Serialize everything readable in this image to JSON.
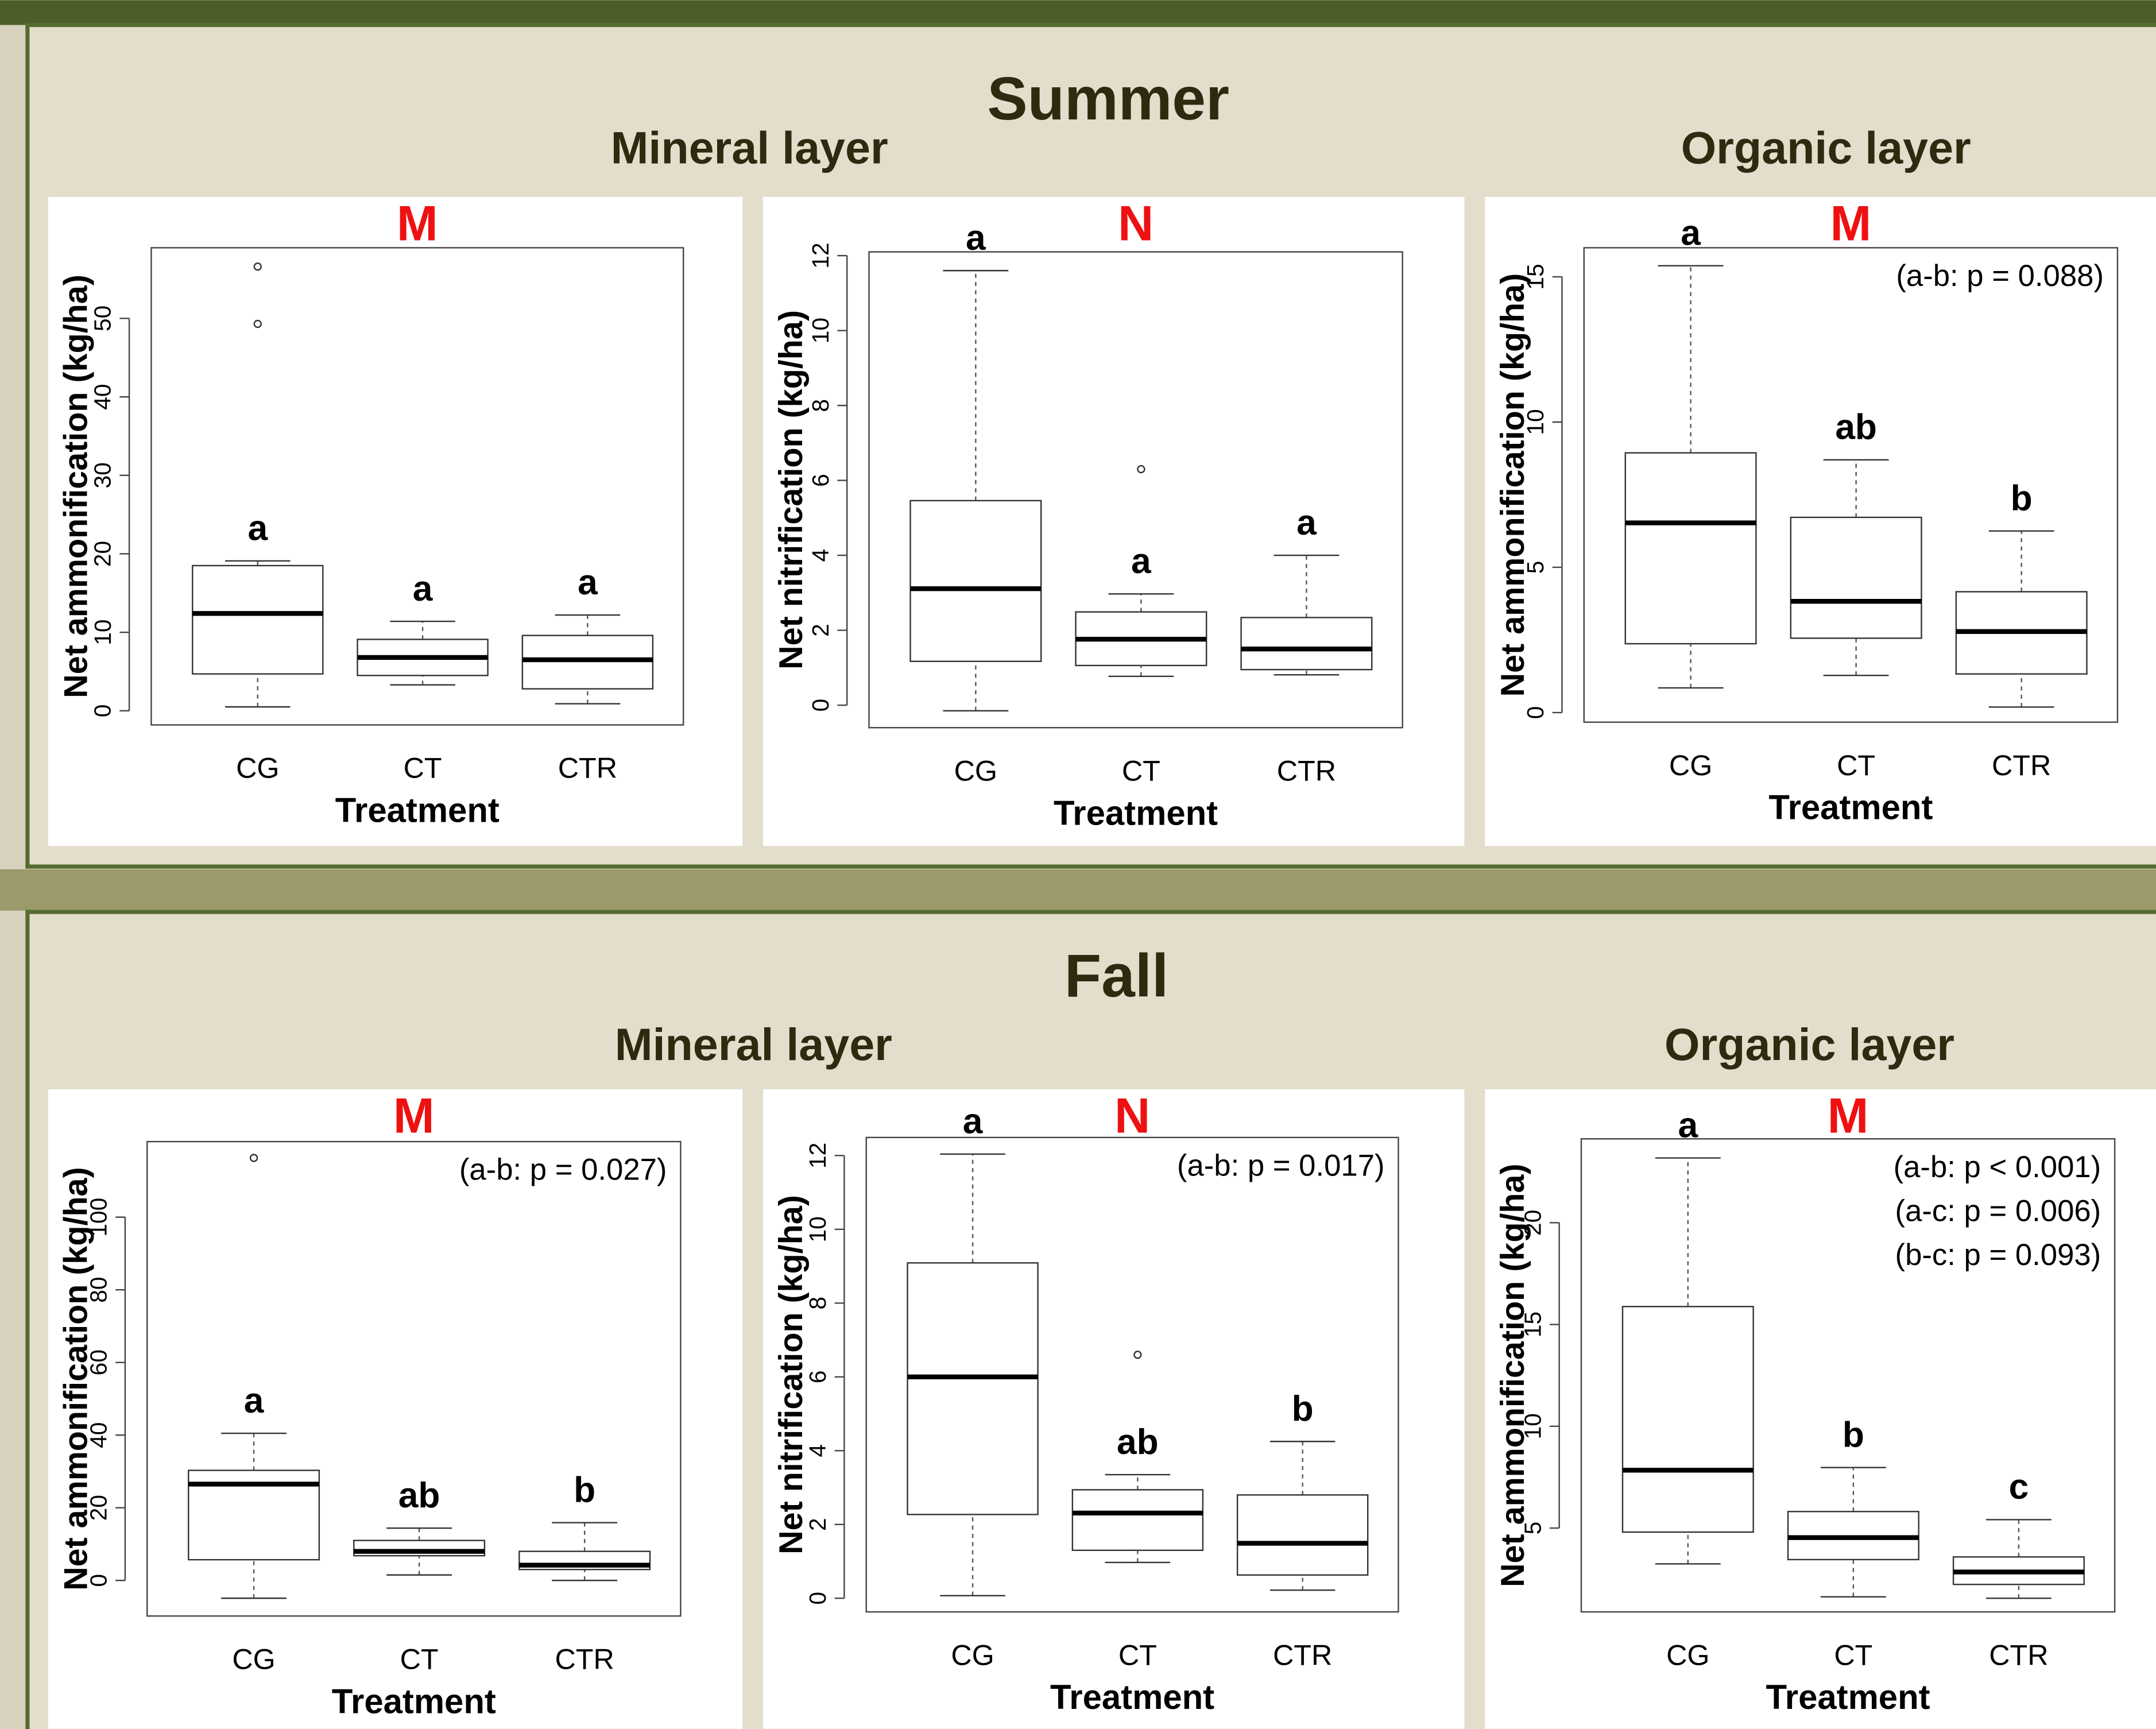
{
  "sections": [
    {
      "title": "Summer",
      "left": "Mineral layer",
      "right": "Organic layer"
    },
    {
      "title": "Fall",
      "left": "Mineral layer",
      "right": "Organic layer"
    }
  ],
  "chart_data": [
    {
      "type": "box",
      "title": "M",
      "ylabel": "Net ammonification (kg/ha)",
      "xlabel": "Treatment",
      "categories": [
        "CG",
        "CT",
        "CTR"
      ],
      "ylim": [
        -1.8,
        59
      ],
      "yticks": [
        0,
        10,
        20,
        30,
        40,
        50
      ],
      "boxes": [
        {
          "min": 0.5,
          "q1": 4.7,
          "median": 12.4,
          "q3": 18.5,
          "max": 19.1,
          "outliers": [
            56.6,
            49.3
          ],
          "label": "a"
        },
        {
          "min": 3.3,
          "q1": 4.5,
          "median": 6.8,
          "q3": 9.1,
          "max": 11.4,
          "outliers": [],
          "label": "a"
        },
        {
          "min": 0.9,
          "q1": 2.8,
          "median": 6.5,
          "q3": 9.6,
          "max": 12.2,
          "outliers": [],
          "label": "a"
        }
      ],
      "annotations": []
    },
    {
      "type": "box",
      "title": "N",
      "ylabel": "Net nitrification (kg/ha)",
      "xlabel": "Treatment",
      "categories": [
        "CG",
        "CT",
        "CTR"
      ],
      "ylim": [
        -0.6,
        12.1
      ],
      "yticks": [
        0,
        2,
        4,
        6,
        8,
        10,
        12
      ],
      "boxes": [
        {
          "min": -0.15,
          "q1": 1.17,
          "median": 3.11,
          "q3": 5.46,
          "max": 11.6,
          "outliers": [],
          "label": "a"
        },
        {
          "min": 0.77,
          "q1": 1.06,
          "median": 1.76,
          "q3": 2.49,
          "max": 2.97,
          "outliers": [
            6.3
          ],
          "label": "a"
        },
        {
          "min": 0.81,
          "q1": 0.95,
          "median": 1.5,
          "q3": 2.34,
          "max": 4.0,
          "outliers": [],
          "label": "a"
        }
      ],
      "annotations": []
    },
    {
      "type": "box",
      "title": "M",
      "ylabel": "Net ammonification (kg/ha)",
      "xlabel": "Treatment",
      "categories": [
        "CG",
        "CT",
        "CTR"
      ],
      "ylim": [
        -0.33,
        16.0
      ],
      "yticks": [
        0,
        5,
        10,
        15
      ],
      "boxes": [
        {
          "min": 0.85,
          "q1": 2.37,
          "median": 6.53,
          "q3": 8.94,
          "max": 15.38,
          "outliers": [],
          "label": "a"
        },
        {
          "min": 1.28,
          "q1": 2.56,
          "median": 3.83,
          "q3": 6.72,
          "max": 8.7,
          "outliers": [],
          "label": "ab"
        },
        {
          "min": 0.19,
          "q1": 1.33,
          "median": 2.79,
          "q3": 4.16,
          "max": 6.25,
          "outliers": [],
          "label": "b"
        }
      ],
      "annotations": [
        "(a-b: p = 0.088)"
      ]
    },
    {
      "type": "box",
      "title": "M",
      "ylabel": "Net ammonification (kg/ha)",
      "xlabel": "Treatment",
      "categories": [
        "CG",
        "CT",
        "CTR"
      ],
      "ylim": [
        -9.8,
        120.8
      ],
      "yticks": [
        0,
        20,
        40,
        60,
        80,
        100
      ],
      "boxes": [
        {
          "min": -4.9,
          "q1": 5.7,
          "median": 26.5,
          "q3": 30.3,
          "max": 40.5,
          "outliers": [
            116.3
          ],
          "label": "a"
        },
        {
          "min": 1.5,
          "q1": 6.8,
          "median": 8.0,
          "q3": 11.0,
          "max": 14.4,
          "outliers": [],
          "label": "ab"
        },
        {
          "min": 0,
          "q1": 3.0,
          "median": 4.2,
          "q3": 8.0,
          "max": 15.9,
          "outliers": [],
          "label": "b"
        }
      ],
      "annotations": [
        "(a-b: p = 0.027)"
      ]
    },
    {
      "type": "box",
      "title": "N",
      "ylabel": "Net nitrification (kg/ha)",
      "xlabel": "Treatment",
      "categories": [
        "CG",
        "CT",
        "CTR"
      ],
      "ylim": [
        -0.37,
        12.49
      ],
      "yticks": [
        0,
        2,
        4,
        6,
        8,
        10,
        12
      ],
      "boxes": [
        {
          "min": 0.07,
          "q1": 2.27,
          "median": 6.0,
          "q3": 9.09,
          "max": 12.04,
          "outliers": [],
          "label": "a"
        },
        {
          "min": 0.97,
          "q1": 1.3,
          "median": 2.31,
          "q3": 2.94,
          "max": 3.35,
          "outliers": [
            6.6
          ],
          "label": "ab"
        },
        {
          "min": 0.22,
          "q1": 0.63,
          "median": 1.49,
          "q3": 2.8,
          "max": 4.25,
          "outliers": [],
          "label": "b"
        }
      ],
      "annotations": [
        "(a-b: p = 0.017)"
      ]
    },
    {
      "type": "box",
      "title": "M",
      "ylabel": "Net ammonification (kg/ha)",
      "xlabel": "Treatment",
      "categories": [
        "CG",
        "CT",
        "CTR"
      ],
      "ylim": [
        0.88,
        24.12
      ],
      "yticks": [
        5,
        10,
        15,
        20
      ],
      "boxes": [
        {
          "min": 3.24,
          "q1": 4.8,
          "median": 7.84,
          "q3": 15.88,
          "max": 23.18,
          "outliers": [],
          "label": "a"
        },
        {
          "min": 1.62,
          "q1": 3.45,
          "median": 4.53,
          "q3": 5.81,
          "max": 7.97,
          "outliers": [],
          "label": "b"
        },
        {
          "min": 1.55,
          "q1": 2.23,
          "median": 2.84,
          "q3": 3.58,
          "max": 5.41,
          "outliers": [],
          "label": "c"
        }
      ],
      "annotations": [
        "(a-b: p < 0.001)",
        "(a-c: p = 0.006)",
        "(b-c: p = 0.093)"
      ]
    }
  ]
}
